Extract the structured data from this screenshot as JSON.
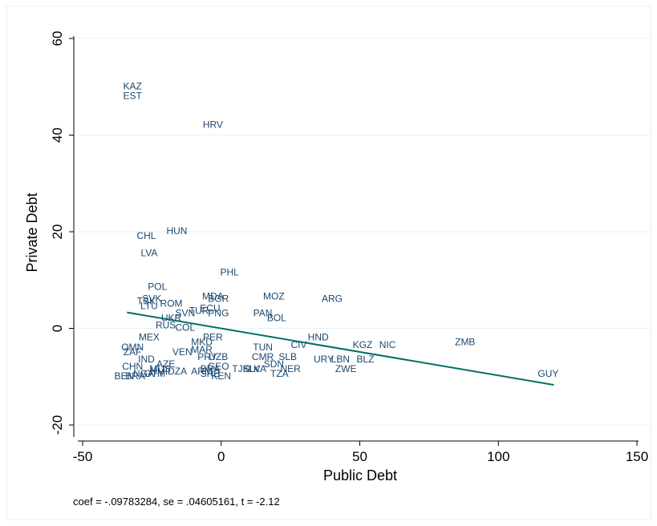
{
  "chart_data": {
    "type": "scatter",
    "xlabel": "Public Debt",
    "ylabel": "Private Debt",
    "xlim": [
      -50,
      150
    ],
    "ylim": [
      -20,
      60
    ],
    "xticks": [
      "-50",
      "0",
      "50",
      "100",
      "150"
    ],
    "yticks": [
      "-20",
      "0",
      "20",
      "40",
      "60"
    ],
    "xtick_values": [
      -50,
      0,
      50,
      100,
      150
    ],
    "ytick_values": [
      -20,
      0,
      20,
      40,
      60
    ],
    "grid": "horizontal",
    "note": "coef = -.09783284, se = .04605161, t = -2.12",
    "fit_line": {
      "x": [
        -34,
        120
      ],
      "y": [
        3.3,
        -11.7
      ],
      "color": "#007062"
    },
    "label_color": "#1a476f",
    "points": [
      {
        "label": "KAZ",
        "x": -32,
        "y": 50
      },
      {
        "label": "EST",
        "x": -32,
        "y": 48
      },
      {
        "label": "HRV",
        "x": -3,
        "y": 42
      },
      {
        "label": "HUN",
        "x": -16,
        "y": 20
      },
      {
        "label": "CHL",
        "x": -27,
        "y": 19
      },
      {
        "label": "LVA",
        "x": -26,
        "y": 15.5
      },
      {
        "label": "PHL",
        "x": 3,
        "y": 11.5
      },
      {
        "label": "POL",
        "x": -23,
        "y": 8.5
      },
      {
        "label": "MOZ",
        "x": 19,
        "y": 6.5
      },
      {
        "label": "ARG",
        "x": 40,
        "y": 6
      },
      {
        "label": "MDA",
        "x": -3,
        "y": 6.5
      },
      {
        "label": "BGR",
        "x": -1,
        "y": 6
      },
      {
        "label": "SVK",
        "x": -25,
        "y": 6
      },
      {
        "label": "TSK",
        "x": -27,
        "y": 5.5
      },
      {
        "label": "ROM",
        "x": -18,
        "y": 5
      },
      {
        "label": "LTU",
        "x": -26,
        "y": 4.5
      },
      {
        "label": "ECU",
        "x": -4,
        "y": 4
      },
      {
        "label": "TUR",
        "x": -8,
        "y": 3.5
      },
      {
        "label": "SVN",
        "x": -13,
        "y": 3
      },
      {
        "label": "PNG",
        "x": -1,
        "y": 3
      },
      {
        "label": "PAN",
        "x": 15,
        "y": 3
      },
      {
        "label": "BOL",
        "x": 20,
        "y": 2
      },
      {
        "label": "UKR",
        "x": -18,
        "y": 2
      },
      {
        "label": "RUS",
        "x": -20,
        "y": 0.5
      },
      {
        "label": "COL",
        "x": -13,
        "y": 0
      },
      {
        "label": "MEX",
        "x": -26,
        "y": -2
      },
      {
        "label": "PER",
        "x": -3,
        "y": -2
      },
      {
        "label": "MKD",
        "x": -7,
        "y": -3
      },
      {
        "label": "HND",
        "x": 35,
        "y": -2
      },
      {
        "label": "CIV",
        "x": 28,
        "y": -3.5
      },
      {
        "label": "KGZ",
        "x": 51,
        "y": -3.5
      },
      {
        "label": "NIC",
        "x": 60,
        "y": -3.5
      },
      {
        "label": "ZMB",
        "x": 88,
        "y": -3
      },
      {
        "label": "TUN",
        "x": 15,
        "y": -4
      },
      {
        "label": "OMN",
        "x": -32,
        "y": -4
      },
      {
        "label": "ZAF",
        "x": -32,
        "y": -5
      },
      {
        "label": "VEN",
        "x": -14,
        "y": -5
      },
      {
        "label": "MAR",
        "x": -7,
        "y": -4.5
      },
      {
        "label": "PRY",
        "x": -5,
        "y": -6
      },
      {
        "label": "UZB",
        "x": -1,
        "y": -6
      },
      {
        "label": "CMR",
        "x": 15,
        "y": -6
      },
      {
        "label": "SLB",
        "x": 24,
        "y": -6
      },
      {
        "label": "IND",
        "x": -27,
        "y": -6.5
      },
      {
        "label": "URY",
        "x": 37,
        "y": -6.5
      },
      {
        "label": "LBN",
        "x": 43,
        "y": -6.5
      },
      {
        "label": "BLZ",
        "x": 52,
        "y": -6.5
      },
      {
        "label": "AZE",
        "x": -20,
        "y": -7.5
      },
      {
        "label": "SDN",
        "x": 19,
        "y": -7.5
      },
      {
        "label": "CHN",
        "x": -32,
        "y": -8
      },
      {
        "label": "MUS",
        "x": -22,
        "y": -8.5
      },
      {
        "label": "GEO",
        "x": -1,
        "y": -8
      },
      {
        "label": "TJK",
        "x": 7,
        "y": -8.5
      },
      {
        "label": "SLV",
        "x": 11,
        "y": -8.5
      },
      {
        "label": "LKA",
        "x": 13,
        "y": -8.5
      },
      {
        "label": "TZA",
        "x": 21,
        "y": -9.5
      },
      {
        "label": "NER",
        "x": 25,
        "y": -8.5
      },
      {
        "label": "ZWE",
        "x": 45,
        "y": -8.5
      },
      {
        "label": "GUY",
        "x": 118,
        "y": -9.5
      },
      {
        "label": "BEN",
        "x": -35,
        "y": -10
      },
      {
        "label": "BRA",
        "x": -31,
        "y": -10
      },
      {
        "label": "NGA",
        "x": -28,
        "y": -9.5
      },
      {
        "label": "GTM",
        "x": -24,
        "y": -9.5
      },
      {
        "label": "HMIDZA",
        "x": -19,
        "y": -9
      },
      {
        "label": "ARM",
        "x": -7,
        "y": -9
      },
      {
        "label": "BRA",
        "x": -4,
        "y": -8.5
      },
      {
        "label": "SRB",
        "x": -4,
        "y": -9.5
      },
      {
        "label": "KEN",
        "x": 0,
        "y": -10
      }
    ]
  }
}
